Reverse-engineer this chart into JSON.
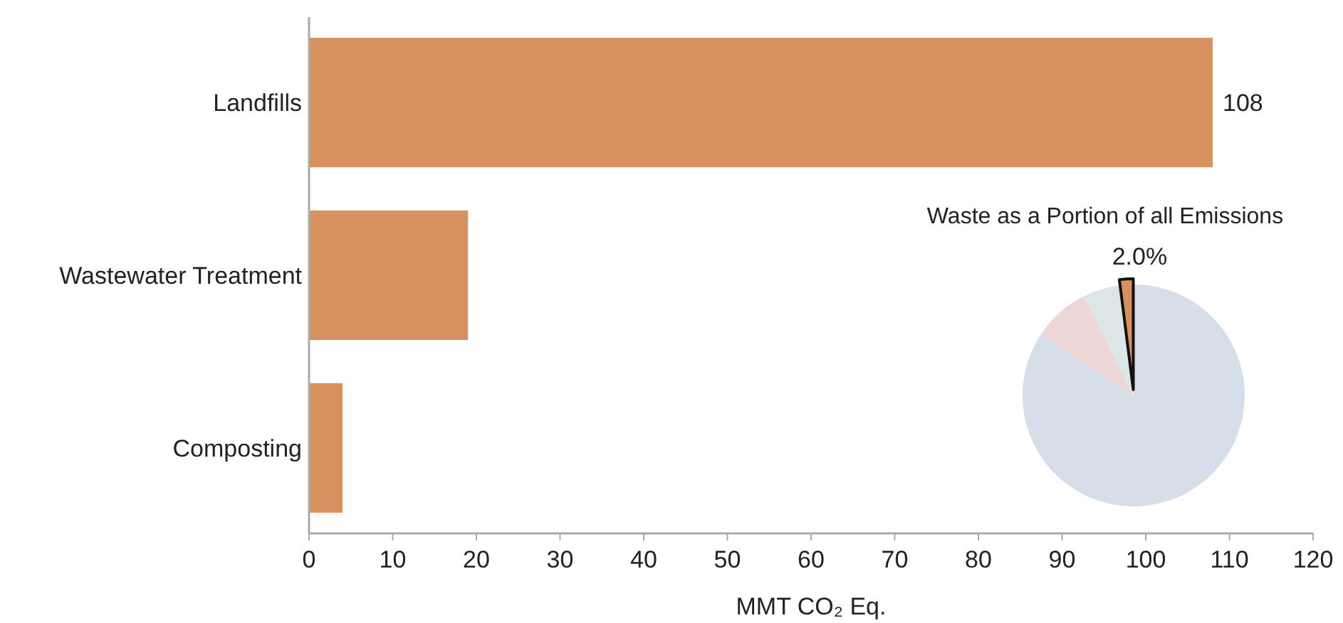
{
  "chart_data": [
    {
      "type": "bar",
      "orientation": "horizontal",
      "categories": [
        "Landfills",
        "Wastewater Treatment",
        "Composting"
      ],
      "values": [
        108,
        19,
        4
      ],
      "value_labels": [
        "108",
        null,
        null
      ],
      "color": "#d7915e",
      "xlabel": "MMT CO₂ Eq.",
      "xlim": [
        0,
        120
      ],
      "xticks": [
        0,
        10,
        20,
        30,
        40,
        50,
        60,
        70,
        80,
        90,
        100,
        110,
        120
      ],
      "grid": false
    },
    {
      "type": "pie",
      "title": "Waste as a Portion of all Emissions",
      "categories": [
        null,
        null,
        null,
        null
      ],
      "values": [
        84.2,
        8.4,
        5.4,
        2.0
      ],
      "colors": [
        "#d6deea",
        "#ecd6d6",
        "#dde6e6",
        "#d7915e"
      ],
      "value_labels": [
        null,
        null,
        null,
        "2.0%"
      ]
    }
  ]
}
